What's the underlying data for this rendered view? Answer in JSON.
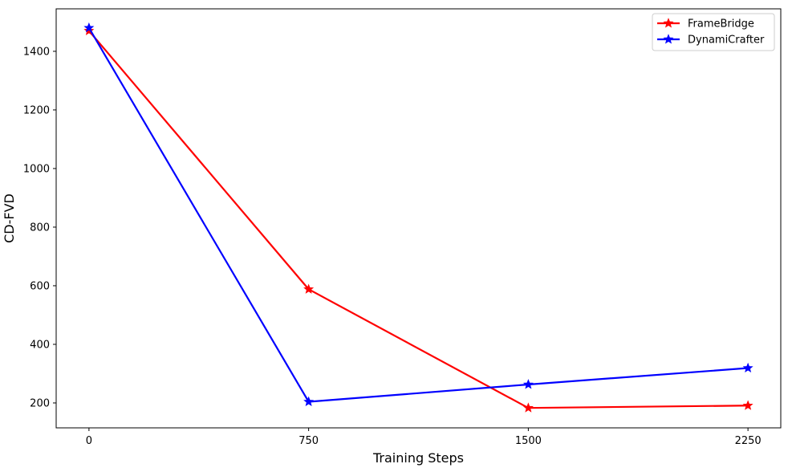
{
  "chart_data": {
    "type": "line",
    "title": "",
    "xlabel": "Training Steps",
    "ylabel": "CD-FVD",
    "x": [
      0,
      750,
      1500,
      2250
    ],
    "x_ticks": [
      "0",
      "750",
      "1500",
      "2250"
    ],
    "y_ticks": [
      "200",
      "400",
      "600",
      "800",
      "1000",
      "1200",
      "1400"
    ],
    "xlim": [
      -112,
      2362
    ],
    "ylim": [
      115,
      1545
    ],
    "grid": false,
    "legend_position": "top-right",
    "series": [
      {
        "name": "FrameBridge",
        "color": "#ff0000",
        "marker": "star",
        "values": [
          1470,
          588,
          183,
          191
        ]
      },
      {
        "name": "DynamiCrafter",
        "color": "#0000ff",
        "marker": "star",
        "values": [
          1480,
          204,
          263,
          319
        ]
      }
    ]
  }
}
